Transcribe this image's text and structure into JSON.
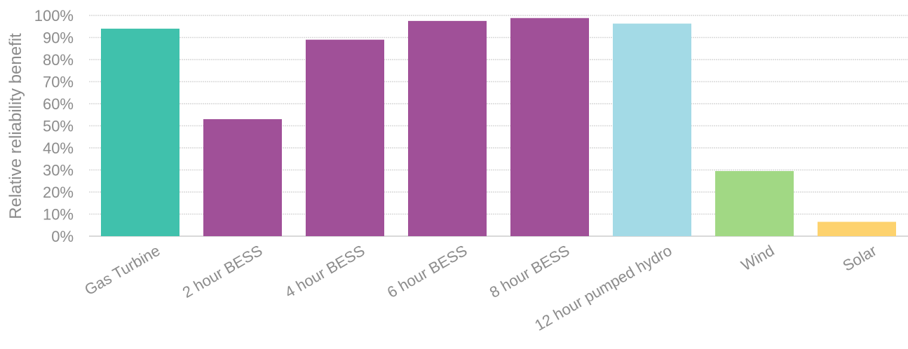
{
  "chart_data": {
    "type": "bar",
    "categories": [
      "Gas Turbine",
      "2 hour BESS",
      "4 hour BESS",
      "6 hour BESS",
      "8 hour BESS",
      "12 hour pumped hydro",
      "Wind",
      "Solar"
    ],
    "values": [
      94,
      53,
      89,
      97.5,
      98.8,
      96.3,
      29.5,
      6.5
    ],
    "colors": [
      "#40c1ac",
      "#a05098",
      "#a05098",
      "#a05098",
      "#a05098",
      "#a3dae6",
      "#a1d884",
      "#fdd26e"
    ],
    "title": "",
    "xlabel": "",
    "ylabel": "Relative reliability benefit",
    "ylim": [
      0,
      100
    ],
    "yticks": [
      0,
      10,
      20,
      30,
      40,
      50,
      60,
      70,
      80,
      90,
      100
    ],
    "ytick_labels": [
      "0%",
      "10%",
      "20%",
      "30%",
      "40%",
      "50%",
      "60%",
      "70%",
      "80%",
      "90%",
      "100%"
    ],
    "grid": true,
    "legend": "none"
  }
}
